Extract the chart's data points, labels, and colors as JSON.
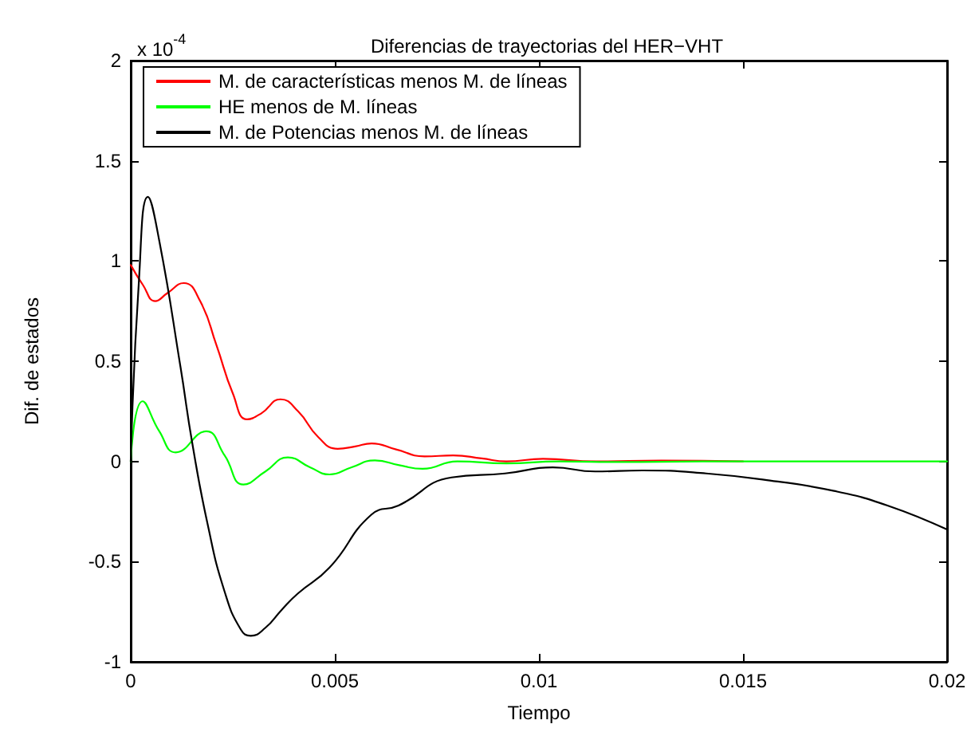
{
  "chart_data": {
    "type": "line",
    "title": "Diferencias de trayectorias del HER−VHT",
    "xlabel": "Tiempo",
    "ylabel": "Dif. de estados",
    "annotations": [
      "x 10$^{-4}$"
    ],
    "xlim": [
      0,
      0.02
    ],
    "xticks": [
      0,
      0.005,
      0.01,
      0.015,
      0.02
    ],
    "ylim": [
      -1,
      2
    ],
    "yticks": [
      -1,
      -0.5,
      0,
      0.5,
      1,
      1.5,
      2
    ],
    "grid": false,
    "legend": "top left",
    "marker": "none",
    "line_style": "solid",
    "series": [
      {
        "name": "M. de características menos M. de líneas",
        "color": "#ff0000",
        "x": [
          0,
          0.0003,
          0.0006,
          0.0009,
          0.0013,
          0.0017,
          0.0021,
          0.0025,
          0.00285,
          0.0032,
          0.00367,
          0.0041,
          0.0046,
          0.00507,
          0.0055,
          0.0059,
          0.0065,
          0.0072,
          0.0079,
          0.0086,
          0.0092,
          0.0101,
          0.0114,
          0.013,
          0.015
        ],
        "values": [
          0.98,
          0.88,
          0.8,
          0.84,
          0.89,
          0.8,
          0.58,
          0.34,
          0.21,
          0.24,
          0.31,
          0.25,
          0.12,
          0.063,
          0.075,
          0.09,
          0.06,
          0.025,
          0.03,
          0.015,
          0.0,
          0.013,
          0.0,
          0.004,
          0.0
        ]
      },
      {
        "name": "HE menos de M. líneas",
        "color": "#00ff00",
        "x": [
          0,
          0.00029,
          0.0007,
          0.0011,
          0.00185,
          0.0023,
          0.00276,
          0.0033,
          0.00385,
          0.0044,
          0.00487,
          0.0054,
          0.00598,
          0.0066,
          0.00715,
          0.008,
          0.0092,
          0.0105,
          0.012,
          0.014,
          0.017,
          0.02
        ],
        "values": [
          0,
          0.3,
          0.15,
          0.045,
          0.15,
          0.03,
          -0.115,
          -0.05,
          0.02,
          -0.03,
          -0.065,
          -0.03,
          0.005,
          -0.02,
          -0.037,
          0.0,
          -0.01,
          0.0,
          -0.003,
          0.0,
          0.0,
          0.0
        ]
      },
      {
        "name": "M. de Potencias menos M. de líneas",
        "color": "#000000",
        "x": [
          0,
          0.0002,
          0.00042,
          0.0007,
          0.00122,
          0.0015,
          0.00188,
          0.0023,
          0.0027,
          0.00294,
          0.0033,
          0.0037,
          0.00409,
          0.00487,
          0.0059,
          0.00656,
          0.00786,
          0.00917,
          0.01034,
          0.01138,
          0.01254,
          0.0141,
          0.01566,
          0.01723,
          0.01854,
          0.02
        ],
        "values": [
          0,
          0.9,
          1.32,
          1.1,
          0.47,
          0.1,
          -0.31,
          -0.65,
          -0.84,
          -0.87,
          -0.83,
          -0.74,
          -0.66,
          -0.53,
          -0.265,
          -0.22,
          -0.08,
          -0.06,
          -0.03,
          -0.05,
          -0.045,
          -0.06,
          -0.095,
          -0.147,
          -0.22,
          -0.34
        ]
      }
    ]
  }
}
